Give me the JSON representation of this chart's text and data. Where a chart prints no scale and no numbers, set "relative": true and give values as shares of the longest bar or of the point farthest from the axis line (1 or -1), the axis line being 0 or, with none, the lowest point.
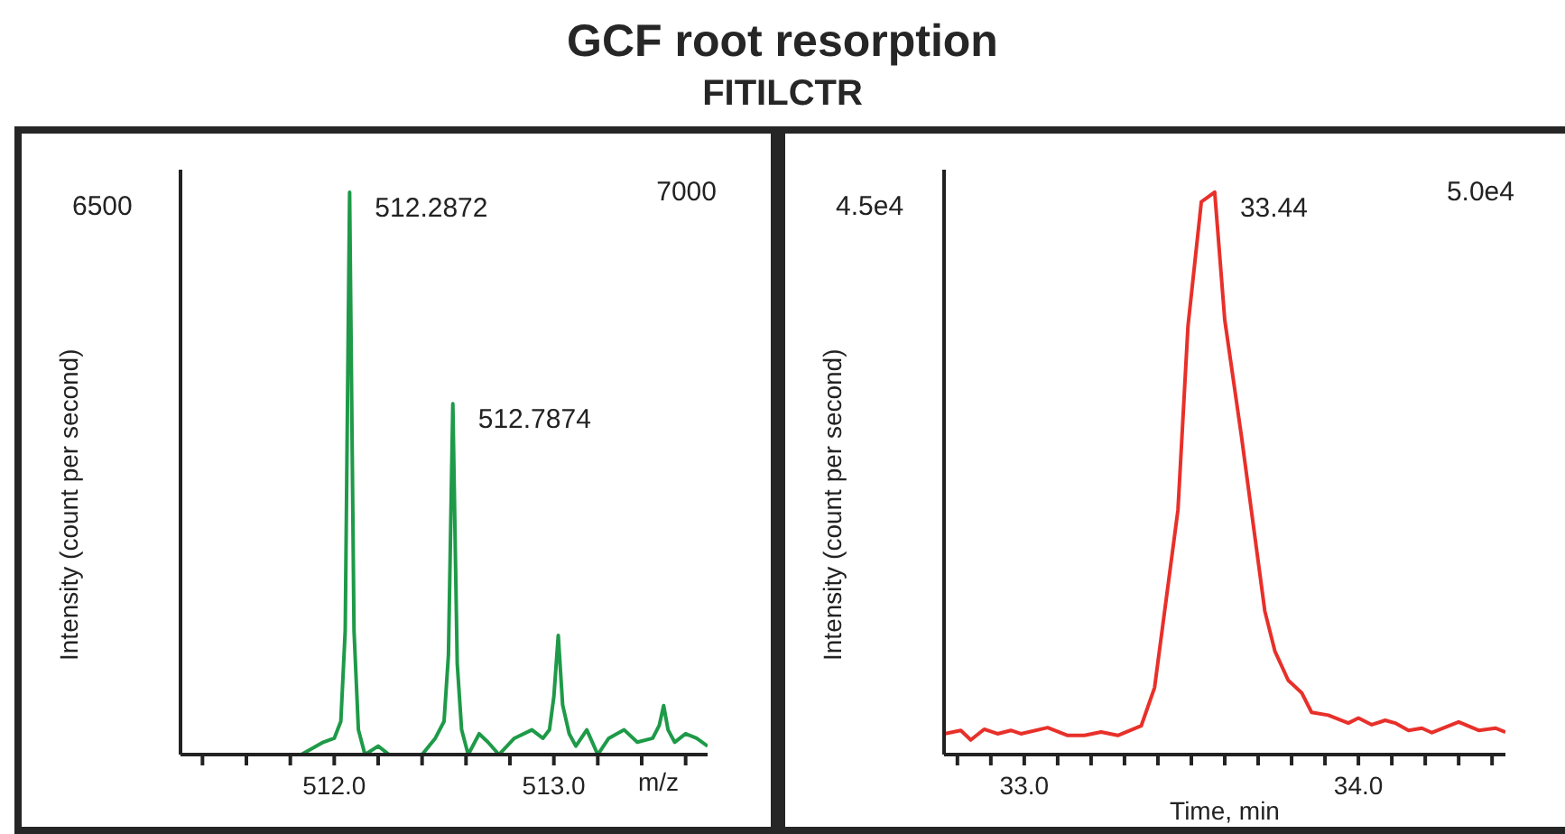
{
  "chart_data": [
    {
      "type": "line",
      "relative": true,
      "title": "GCF root resorption",
      "subtitle": "FITILCTR",
      "xlabel": "m/z",
      "ylabel": "Intensity (count per second)",
      "x": [
        511.3,
        511.85,
        511.95,
        512.0,
        512.03,
        512.05,
        512.07,
        512.09,
        512.11,
        512.14,
        512.2,
        512.25,
        512.4,
        512.46,
        512.5,
        512.52,
        512.54,
        512.56,
        512.58,
        512.61,
        512.66,
        512.7,
        512.75,
        512.82,
        512.9,
        512.95,
        512.98,
        513.0,
        513.02,
        513.04,
        513.07,
        513.1,
        513.15,
        513.2,
        513.25,
        513.32,
        513.38,
        513.45,
        513.48,
        513.5,
        513.52,
        513.55,
        513.6,
        513.65,
        513.7
      ],
      "series": [
        {
          "color": "#1e9a48",
          "values": [
            0,
            0,
            0.022,
            0.029,
            0.059,
            0.221,
            1,
            0.221,
            0.044,
            0,
            0.015,
            0,
            0,
            0.029,
            0.059,
            0.177,
            0.624,
            0.162,
            0.044,
            0,
            0.037,
            0.022,
            0,
            0.029,
            0.044,
            0.029,
            0.044,
            0.103,
            0.212,
            0.088,
            0.037,
            0.015,
            0.044,
            0,
            0.029,
            0.044,
            0.022,
            0.029,
            0.052,
            0.087,
            0.044,
            0.022,
            0.037,
            0.029,
            0.015
          ]
        }
      ],
      "xlim": [
        511.3,
        513.7
      ],
      "xticks": [
        {
          "value": 511.4,
          "label": null
        },
        {
          "value": 511.6,
          "label": null
        },
        {
          "value": 511.8,
          "label": null
        },
        {
          "value": 512.0,
          "label": "512.0"
        },
        {
          "value": 512.2,
          "label": null
        },
        {
          "value": 512.4,
          "label": null
        },
        {
          "value": 512.6,
          "label": null
        },
        {
          "value": 512.8,
          "label": null
        },
        {
          "value": 513.0,
          "label": "513.0"
        },
        {
          "value": 513.2,
          "label": null
        },
        {
          "value": 513.4,
          "label": null
        },
        {
          "value": 513.6,
          "label": null
        }
      ],
      "annotations": [
        "6500",
        "7000",
        {
          "text": "512.2872",
          "x": 512.07,
          "y": 1
        },
        {
          "text": "512.7874",
          "x": 512.54,
          "y": 0.624
        }
      ]
    },
    {
      "type": "line",
      "relative": true,
      "xlabel": "Time, min",
      "ylabel": "Intensity (count per second)",
      "x": [
        32.76,
        32.81,
        32.84,
        32.88,
        32.92,
        32.96,
        32.99,
        33.07,
        33.13,
        33.18,
        33.23,
        33.28,
        33.35,
        33.39,
        33.46,
        33.49,
        33.53,
        33.57,
        33.6,
        33.65,
        33.72,
        33.75,
        33.79,
        33.83,
        33.86,
        33.91,
        33.97,
        34.0,
        34.04,
        34.08,
        34.11,
        34.15,
        34.19,
        34.22,
        34.3,
        34.36,
        34.41,
        34.44
      ],
      "series": [
        {
          "color": "#e8302a",
          "values": [
            0.037,
            0.043,
            0.026,
            0.045,
            0.037,
            0.043,
            0.037,
            0.048,
            0.034,
            0.034,
            0.04,
            0.034,
            0.051,
            0.119,
            0.435,
            0.762,
            0.983,
            1,
            0.773,
            0.566,
            0.255,
            0.184,
            0.132,
            0.11,
            0.075,
            0.07,
            0.056,
            0.065,
            0.053,
            0.061,
            0.056,
            0.043,
            0.047,
            0.039,
            0.058,
            0.043,
            0.047,
            0.04
          ]
        }
      ],
      "xlim": [
        32.76,
        34.44
      ],
      "xticks": [
        {
          "value": 32.8,
          "label": null
        },
        {
          "value": 32.9,
          "label": null
        },
        {
          "value": 33.0,
          "label": "33.0"
        },
        {
          "value": 33.1,
          "label": null
        },
        {
          "value": 33.2,
          "label": null
        },
        {
          "value": 33.3,
          "label": null
        },
        {
          "value": 33.4,
          "label": null
        },
        {
          "value": 33.5,
          "label": null
        },
        {
          "value": 33.6,
          "label": null
        },
        {
          "value": 33.7,
          "label": null
        },
        {
          "value": 33.8,
          "label": null
        },
        {
          "value": 33.9,
          "label": null
        },
        {
          "value": 34.0,
          "label": "34.0"
        },
        {
          "value": 34.1,
          "label": null
        },
        {
          "value": 34.2,
          "label": null
        },
        {
          "value": 34.3,
          "label": null
        },
        {
          "value": 34.4,
          "label": null
        }
      ],
      "annotations": [
        "4.5e4",
        "5.0e4",
        {
          "text": "33.44",
          "x": 33.57,
          "y": 1
        }
      ]
    }
  ]
}
